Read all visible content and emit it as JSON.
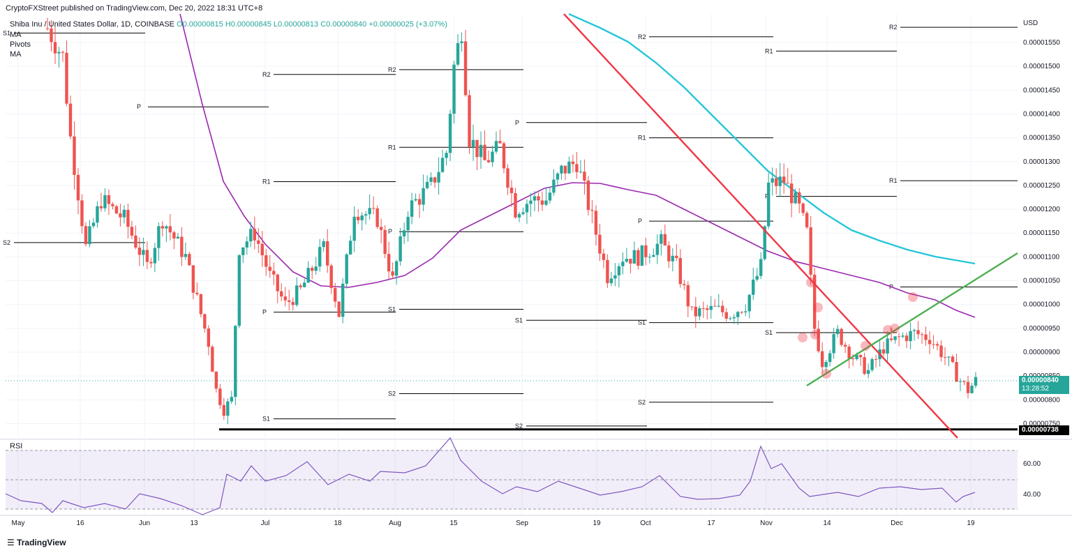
{
  "header": {
    "published": "CryptoFXStreet published on TradingView.com, Dec 20, 2022 18:31 UTC+8",
    "symbol": "Shiba Inu / United States Dollar, 1D, COINBASE",
    "ohlc": "O0.00000815  H0.00000845  L0.00000813  C0.00000840  +0.00000025 (+3.07%)",
    "indicators": [
      "MA",
      "Pivots",
      "MA"
    ]
  },
  "footer": {
    "brand": "TradingView"
  },
  "colors": {
    "up": "#26a69a",
    "down": "#ef5350",
    "ma50": "#9c27b0",
    "ma100": "#26c6da",
    "trend_down": "#f23645",
    "trend_up": "#4caf50"
  },
  "chart_data": {
    "type": "candlestick",
    "axis_currency": "USD",
    "ylim": [
      7.2e-06,
      1.61e-05
    ],
    "y_ticks": [
      "0.00001550",
      "0.00001500",
      "0.00001450",
      "0.00001400",
      "0.00001350",
      "0.00001300",
      "0.00001250",
      "0.00001200",
      "0.00001150",
      "0.00001100",
      "0.00001050",
      "0.00001000",
      "0.00000950",
      "0.00000900",
      "0.00000850",
      "0.00000800",
      "0.00000750"
    ],
    "x_ticks": [
      "May",
      "16",
      "Jun",
      "13",
      "Jul",
      "18",
      "Aug",
      "15",
      "Sep",
      "19",
      "Oct",
      "17",
      "Nov",
      "14",
      "Dec",
      "19"
    ],
    "current_price": "0.00000840",
    "countdown": "13:28:52",
    "support_level": "0.00000738",
    "rsi": {
      "label": "RSI",
      "ticks": [
        "60.00",
        "40.00"
      ]
    },
    "pivot_labels": [
      "P",
      "R1",
      "R2",
      "S1",
      "S2"
    ]
  }
}
